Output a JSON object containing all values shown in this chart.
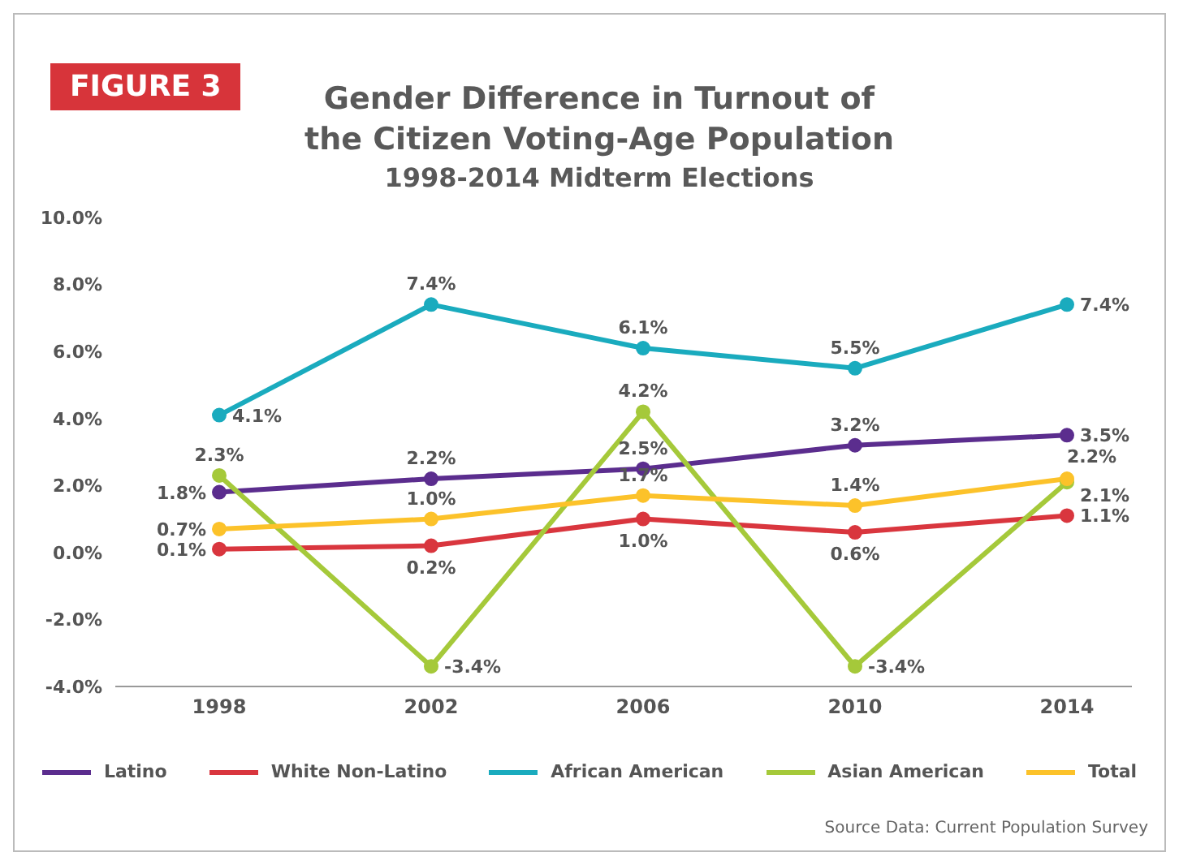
{
  "chart_data": {
    "type": "line",
    "title": "Gender Difference in Turnout of the Citizen Voting-Age Population",
    "subtitle": "1998-2014 Midterm Elections",
    "annotations": [
      "FIGURE 3",
      "Source Data: Current Population Survey"
    ],
    "categories": [
      "1998",
      "2002",
      "2006",
      "2010",
      "2014"
    ],
    "series": [
      {
        "name": "Latino",
        "color": "#5b2d8e",
        "values": [
          1.8,
          2.2,
          2.5,
          3.2,
          3.5
        ],
        "value_labels": [
          "1.8%",
          "2.2%",
          "2.5%",
          "3.2%",
          "3.5%"
        ]
      },
      {
        "name": "White Non-Latino",
        "color": "#d9363e",
        "values": [
          0.1,
          0.2,
          1.0,
          0.6,
          1.1
        ],
        "value_labels": [
          "0.1%",
          "0.2%",
          "1.0%",
          "0.6%",
          "1.1%"
        ]
      },
      {
        "name": "African American",
        "color": "#1aabbe",
        "values": [
          4.1,
          7.4,
          6.1,
          5.5,
          7.4
        ],
        "value_labels": [
          "4.1%",
          "7.4%",
          "6.1%",
          "5.5%",
          "7.4%"
        ]
      },
      {
        "name": "Asian American",
        "color": "#a5c93a",
        "values": [
          2.3,
          -3.4,
          4.2,
          -3.4,
          2.1
        ],
        "value_labels": [
          "2.3%",
          "-3.4%",
          "4.2%",
          "-3.4%",
          "2.1%"
        ]
      },
      {
        "name": "Total",
        "color": "#fcc22a",
        "values": [
          0.7,
          1.0,
          1.7,
          1.4,
          2.2
        ],
        "value_labels": [
          "0.7%",
          "1.0%",
          "1.7%",
          "1.4%",
          "2.2%"
        ]
      }
    ],
    "ylim": [
      -4,
      10
    ],
    "yticks": [
      {
        "value": -4,
        "label": "-4.0%"
      },
      {
        "value": -2,
        "label": "-2.0%"
      },
      {
        "value": 0,
        "label": "0.0%"
      },
      {
        "value": 2,
        "label": "2.0%"
      },
      {
        "value": 4,
        "label": "4.0%"
      },
      {
        "value": 6,
        "label": "6.0%"
      },
      {
        "value": 8,
        "label": "8.0%"
      },
      {
        "value": 10,
        "label": "10.0%"
      }
    ],
    "marker": "circle",
    "line_style": "solid",
    "legend": "bottom"
  }
}
